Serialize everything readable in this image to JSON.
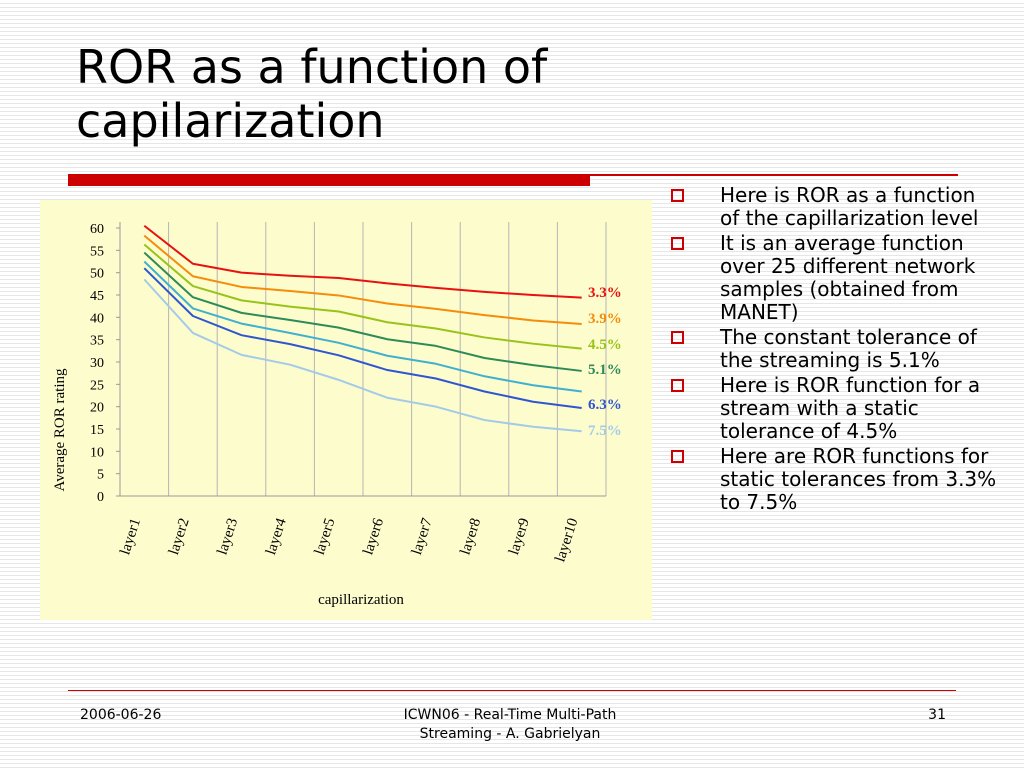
{
  "slide": {
    "title_line1": "ROR as a function of",
    "title_line2": "capilarization",
    "accent_color": "#cc0000"
  },
  "bullets": [
    "Here is ROR as a function of the capillarization level",
    "It is an average function over 25 different network samples (obtained from MANET)",
    "The constant tolerance of the streaming is 5.1%",
    "Here is ROR function for a stream with a static tolerance of 4.5%",
    "Here are ROR functions for static tolerances from 3.3% to 7.5%"
  ],
  "footer": {
    "date": "2006-06-26",
    "center_line1": "ICWN06 - Real-Time Multi-Path",
    "center_line2": "Streaming - A. Gabrielyan",
    "page": "31"
  },
  "chart_data": {
    "type": "line",
    "title": "",
    "xlabel": "capillarization",
    "ylabel": "Average ROR rating",
    "ylim": [
      0,
      60
    ],
    "yticks": [
      0,
      5,
      10,
      15,
      20,
      25,
      30,
      35,
      40,
      45,
      50,
      55,
      60
    ],
    "grid": "vertical",
    "background": "#fdfccd",
    "categories": [
      "layer1",
      "layer2",
      "layer3",
      "layer4",
      "layer5",
      "layer6",
      "layer7",
      "layer8",
      "layer9",
      "layer10"
    ],
    "series": [
      {
        "name": "3.3%",
        "color": "#e8110f",
        "values": [
          60.5,
          52.0,
          50.0,
          49.3,
          48.8,
          47.6,
          46.6,
          45.7,
          45.0,
          44.4
        ]
      },
      {
        "name": "3.9%",
        "color": "#f58c0a",
        "values": [
          58.3,
          49.2,
          46.8,
          45.9,
          44.9,
          43.1,
          41.9,
          40.5,
          39.3,
          38.5
        ]
      },
      {
        "name": "4.5%",
        "color": "#99c31a",
        "values": [
          56.3,
          47.0,
          43.8,
          42.4,
          41.3,
          38.9,
          37.5,
          35.5,
          34.1,
          33.0
        ]
      },
      {
        "name": "5.1%",
        "color": "#2e8b57",
        "values": [
          54.5,
          44.5,
          41.0,
          39.4,
          37.7,
          35.1,
          33.6,
          30.9,
          29.3,
          28.0
        ]
      },
      {
        "name": "",
        "color": "#3fb0d0",
        "values": [
          52.5,
          42.0,
          38.6,
          36.5,
          34.3,
          31.4,
          29.6,
          26.8,
          24.8,
          23.4
        ]
      },
      {
        "name": "6.3%",
        "color": "#2f56d0",
        "values": [
          51.0,
          40.3,
          36.0,
          34.0,
          31.5,
          28.2,
          26.3,
          23.4,
          21.1,
          19.7
        ]
      },
      {
        "name": "7.5%",
        "color": "#a3cbe8",
        "values": [
          48.5,
          36.5,
          31.6,
          29.4,
          26.0,
          22.0,
          20.0,
          17.0,
          15.5,
          14.5
        ]
      }
    ]
  }
}
